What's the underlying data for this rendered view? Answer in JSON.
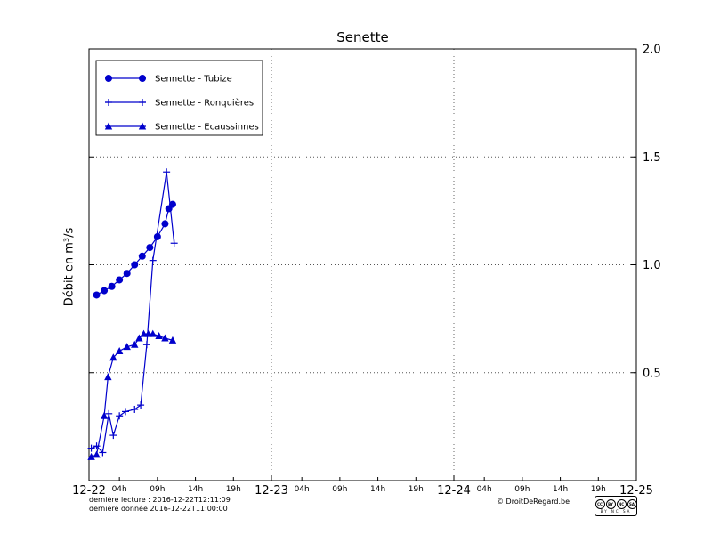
{
  "title": "Senette",
  "ylabel": "Débit en m³/s",
  "footer": {
    "line1": "dernière lecture : 2016-12-22T12:11:09",
    "line2": "dernière donnée  2016-12-22T11:00:00",
    "copyright": "© DroitDeRegard.be",
    "license_circles": [
      "CC",
      "BY",
      "NC",
      "SA"
    ],
    "license_text": "BY NC SA"
  },
  "chart_data": {
    "type": "line",
    "title": "Senette",
    "ylabel": "Débit en m³/s",
    "x_unit": "hours since 2016-12-22 00:00",
    "xlim": [
      0,
      72
    ],
    "ylim": [
      0,
      2
    ],
    "legend_position": "upper left",
    "grid": {
      "vertical": [
        24,
        48
      ],
      "horizontal": [
        0.5,
        1.0,
        1.5
      ]
    },
    "x_ticks": {
      "days": [
        {
          "pos": 0,
          "label": "12-22"
        },
        {
          "pos": 24,
          "label": "12-23"
        },
        {
          "pos": 48,
          "label": "12-24"
        },
        {
          "pos": 72,
          "label": "12-25"
        }
      ],
      "hours": [
        {
          "pos": 4,
          "label": "04h"
        },
        {
          "pos": 9,
          "label": "09h"
        },
        {
          "pos": 14,
          "label": "14h"
        },
        {
          "pos": 19,
          "label": "19h"
        },
        {
          "pos": 28,
          "label": "04h"
        },
        {
          "pos": 33,
          "label": "09h"
        },
        {
          "pos": 38,
          "label": "14h"
        },
        {
          "pos": 43,
          "label": "19h"
        },
        {
          "pos": 52,
          "label": "04h"
        },
        {
          "pos": 57,
          "label": "09h"
        },
        {
          "pos": 62,
          "label": "14h"
        },
        {
          "pos": 67,
          "label": "19h"
        }
      ]
    },
    "y_ticks": [
      {
        "pos": 0.5,
        "label": "0.5"
      },
      {
        "pos": 1.0,
        "label": "1.0"
      },
      {
        "pos": 1.5,
        "label": "1.5"
      },
      {
        "pos": 2.0,
        "label": "2.0"
      }
    ],
    "series": [
      {
        "name": "Sennette - Tubize",
        "marker": "circle",
        "color": "#0000cc",
        "x": [
          1,
          2,
          3,
          4,
          5,
          6,
          7,
          8,
          9,
          10,
          10.5,
          11
        ],
        "y": [
          0.86,
          0.88,
          0.9,
          0.93,
          0.96,
          1.0,
          1.04,
          1.08,
          1.13,
          1.19,
          1.26,
          1.28
        ]
      },
      {
        "name": "Sennette - Ronquières",
        "marker": "plus",
        "color": "#0000cc",
        "x": [
          0.3,
          1,
          1.8,
          2.6,
          3.2,
          4,
          4.8,
          6,
          6.8,
          7.6,
          8.4,
          10.2,
          11.2
        ],
        "y": [
          0.15,
          0.16,
          0.13,
          0.31,
          0.21,
          0.3,
          0.32,
          0.33,
          0.35,
          0.63,
          1.02,
          1.43,
          1.1
        ]
      },
      {
        "name": "Sennette - Ecaussinnes",
        "marker": "triangle",
        "color": "#0000cc",
        "x": [
          0.3,
          1,
          2,
          2.5,
          3.2,
          4,
          5,
          6,
          6.6,
          7.2,
          7.8,
          8.4,
          9.2,
          10,
          11
        ],
        "y": [
          0.11,
          0.12,
          0.3,
          0.48,
          0.57,
          0.6,
          0.62,
          0.63,
          0.66,
          0.68,
          0.68,
          0.68,
          0.67,
          0.66,
          0.65
        ]
      }
    ]
  }
}
